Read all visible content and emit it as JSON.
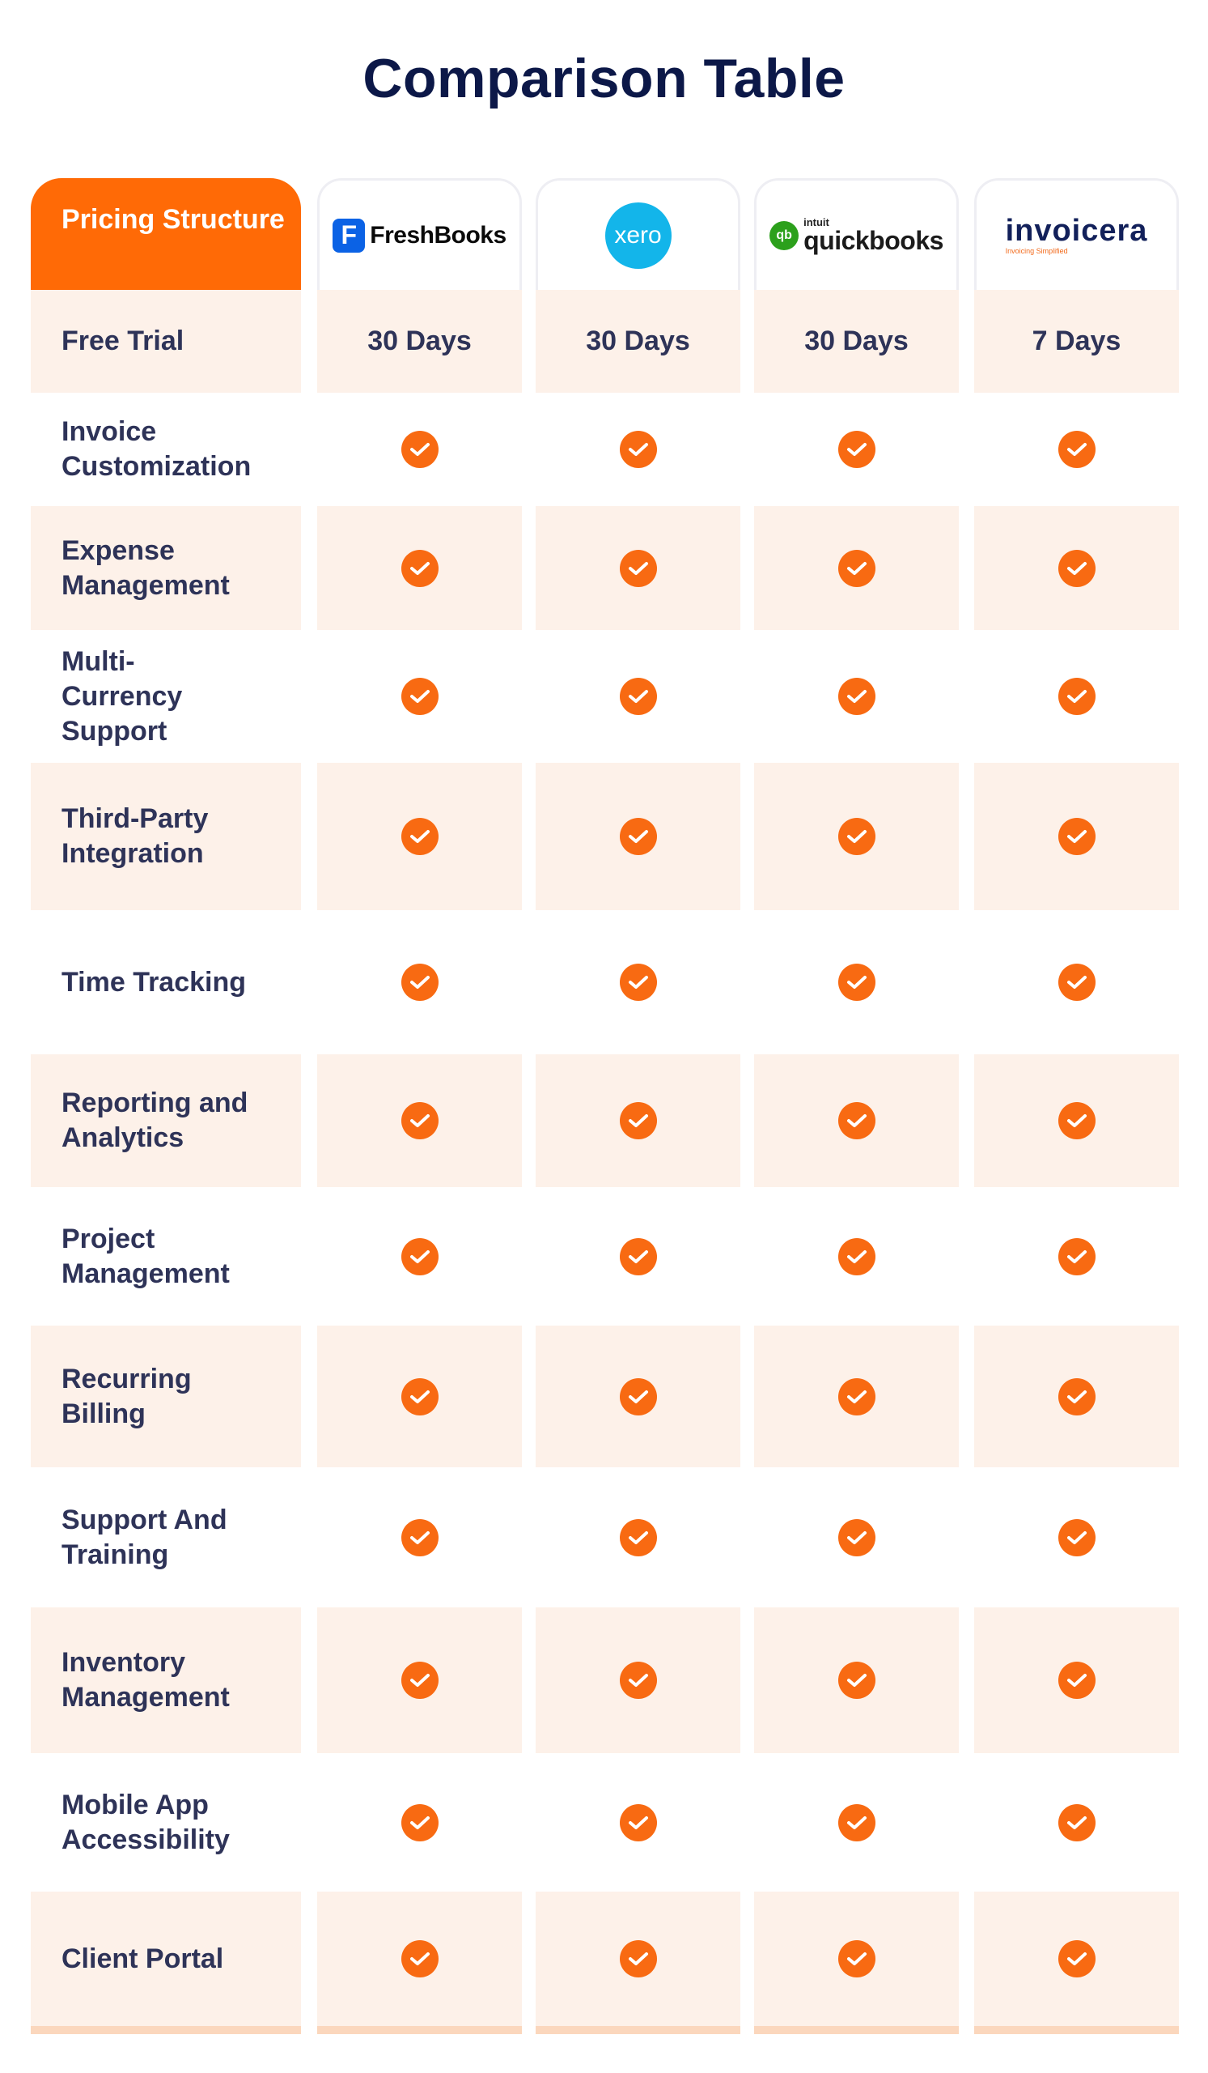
{
  "title": "Comparison Table",
  "header": {
    "row_label": "Pricing Structure",
    "brands": [
      {
        "name": "FreshBooks",
        "icon": "freshbooks-logo",
        "mark": "F"
      },
      {
        "name": "xero",
        "icon": "xero-logo"
      },
      {
        "name": "quickbooks",
        "icon": "quickbooks-logo",
        "mark": "qb",
        "prefix": "intuit"
      },
      {
        "name": "invoicera",
        "icon": "invoicera-logo",
        "tagline": "Invoicing Simplified"
      }
    ]
  },
  "rows": [
    {
      "label": "Free Trial",
      "values": [
        "30 Days",
        "30 Days",
        "30 Days",
        "7 Days"
      ]
    },
    {
      "label": "Invoice Customization",
      "values": [
        "check",
        "check",
        "check",
        "check"
      ]
    },
    {
      "label": "Expense Management",
      "values": [
        "check",
        "check",
        "check",
        "check"
      ]
    },
    {
      "label": "Multi-Currency Support",
      "values": [
        "check",
        "check",
        "check",
        "check"
      ]
    },
    {
      "label": "Third-Party Integration",
      "values": [
        "check",
        "check",
        "check",
        "check"
      ]
    },
    {
      "label": "Time Tracking",
      "values": [
        "check",
        "check",
        "check",
        "check"
      ]
    },
    {
      "label": "Reporting and Analytics",
      "values": [
        "check",
        "check",
        "check",
        "check"
      ]
    },
    {
      "label": "Project Management",
      "values": [
        "check",
        "check",
        "check",
        "check"
      ]
    },
    {
      "label": "Recurring Billing",
      "values": [
        "check",
        "check",
        "check",
        "check"
      ]
    },
    {
      "label": "Support And Training",
      "values": [
        "check",
        "check",
        "check",
        "check"
      ]
    },
    {
      "label": "Inventory Management",
      "values": [
        "check",
        "check",
        "check",
        "check"
      ]
    },
    {
      "label": "Mobile App Accessibility",
      "values": [
        "check",
        "check",
        "check",
        "check"
      ]
    },
    {
      "label": "Client Portal",
      "values": [
        "check",
        "check",
        "check",
        "check"
      ]
    }
  ],
  "colors": {
    "accent": "#ff6a06",
    "check": "#f86a12",
    "row_shade": "#fdf1e9",
    "title": "#0c1848",
    "text": "#2e3358"
  }
}
